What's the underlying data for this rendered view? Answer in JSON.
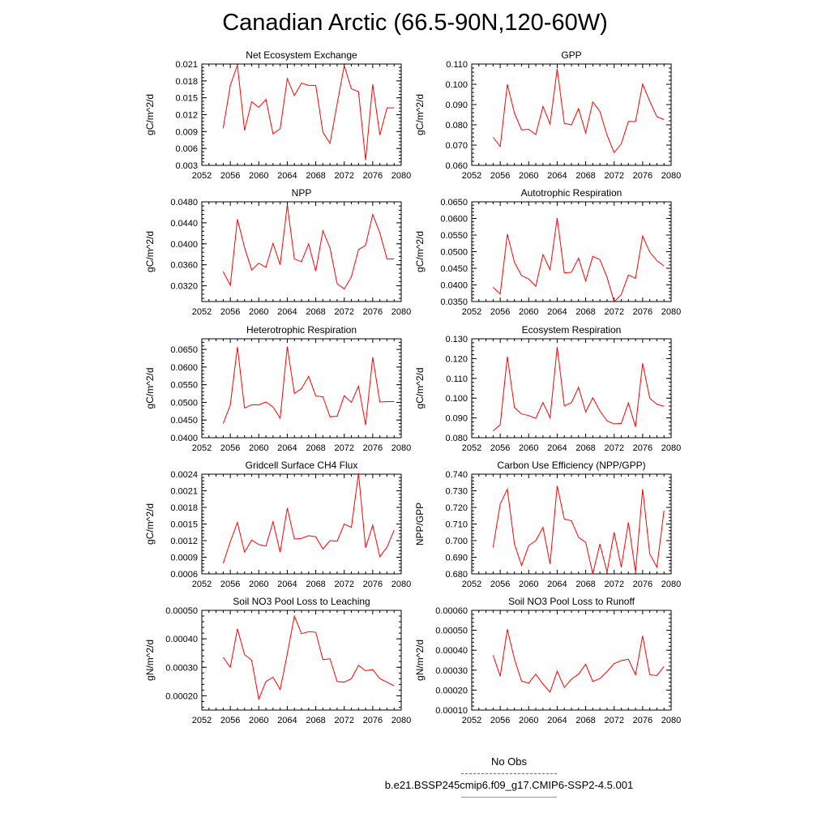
{
  "page_title": "Canadian Arctic (66.5-90N,120-60W)",
  "legend": [
    {
      "label": "No Obs",
      "color": "#6464ff",
      "style": "dashed"
    },
    {
      "label": "b.e21.BSSP245cmip6.f09_g17.CMIP6-SSP2-4.5.001",
      "color": "#ff0000",
      "style": "solid"
    }
  ],
  "chart_data": [
    {
      "type": "line",
      "title": "Net Ecosystem Exchange",
      "ylabel": "gC/m^2/d",
      "xlim": [
        2052,
        2080
      ],
      "xticks": [
        "2052",
        "2056",
        "2060",
        "2064",
        "2068",
        "2072",
        "2076",
        "2080"
      ],
      "ylim": [
        0.003,
        0.021
      ],
      "yticks": [
        "0.003",
        "0.006",
        "0.009",
        "0.012",
        "0.015",
        "0.018",
        "0.021"
      ],
      "series": [
        {
          "color": "#ff0000",
          "x": [
            2055,
            2056,
            2057,
            2058,
            2059,
            2060,
            2061,
            2062,
            2063,
            2064,
            2065,
            2066,
            2067,
            2068,
            2069,
            2070,
            2071,
            2072,
            2073,
            2074,
            2075,
            2076,
            2077,
            2078,
            2079
          ],
          "values": [
            0.0096,
            0.0172,
            0.0208,
            0.0092,
            0.0143,
            0.0133,
            0.0147,
            0.0086,
            0.0095,
            0.0184,
            0.0154,
            0.0176,
            0.0172,
            0.0172,
            0.0089,
            0.0069,
            0.0139,
            0.0207,
            0.0166,
            0.0161,
            0.0039,
            0.0174,
            0.0084,
            0.0132,
            0.0132
          ]
        }
      ]
    },
    {
      "type": "line",
      "title": "GPP",
      "ylabel": "gC/m^2/d",
      "xlim": [
        2052,
        2080
      ],
      "xticks": [
        "2052",
        "2056",
        "2060",
        "2064",
        "2068",
        "2072",
        "2076",
        "2080"
      ],
      "ylim": [
        0.06,
        0.11
      ],
      "yticks": [
        "0.060",
        "0.070",
        "0.080",
        "0.090",
        "0.100",
        "0.110"
      ],
      "series": [
        {
          "color": "#ff0000",
          "x": [
            2055,
            2056,
            2057,
            2058,
            2059,
            2060,
            2061,
            2062,
            2063,
            2064,
            2065,
            2066,
            2067,
            2068,
            2069,
            2070,
            2071,
            2072,
            2073,
            2074,
            2075,
            2076,
            2077,
            2078,
            2079
          ],
          "values": [
            0.0739,
            0.0693,
            0.1,
            0.0858,
            0.0775,
            0.0778,
            0.0752,
            0.0891,
            0.0804,
            0.1076,
            0.0807,
            0.08,
            0.088,
            0.076,
            0.0913,
            0.0866,
            0.0749,
            0.0663,
            0.0707,
            0.0817,
            0.0816,
            0.1001,
            0.0917,
            0.084,
            0.0826
          ]
        }
      ]
    },
    {
      "type": "line",
      "title": "NPP",
      "ylabel": "gC/m^2/d",
      "xlim": [
        2052,
        2080
      ],
      "xticks": [
        "2052",
        "2056",
        "2060",
        "2064",
        "2068",
        "2072",
        "2076",
        "2080"
      ],
      "ylim": [
        0.029,
        0.048
      ],
      "yticks": [
        "0.0320",
        "0.0360",
        "0.0400",
        "0.0440",
        "0.0480"
      ],
      "series": [
        {
          "color": "#ff0000",
          "x": [
            2055,
            2056,
            2057,
            2058,
            2059,
            2060,
            2061,
            2062,
            2063,
            2064,
            2065,
            2066,
            2067,
            2068,
            2069,
            2070,
            2071,
            2072,
            2073,
            2074,
            2075,
            2076,
            2077,
            2078,
            2079
          ],
          "values": [
            0.0347,
            0.0321,
            0.0447,
            0.0393,
            0.035,
            0.0363,
            0.0355,
            0.0401,
            0.036,
            0.0474,
            0.0371,
            0.0366,
            0.04,
            0.0348,
            0.0425,
            0.0392,
            0.0324,
            0.0314,
            0.0337,
            0.0389,
            0.0397,
            0.0456,
            0.0421,
            0.0371,
            0.0371
          ]
        }
      ]
    },
    {
      "type": "line",
      "title": "Autotrophic Respiration",
      "ylabel": "gC/m^2/d",
      "xlim": [
        2052,
        2080
      ],
      "xticks": [
        "2052",
        "2056",
        "2060",
        "2064",
        "2068",
        "2072",
        "2076",
        "2080"
      ],
      "ylim": [
        0.035,
        0.065
      ],
      "yticks": [
        "0.0350",
        "0.0400",
        "0.0450",
        "0.0500",
        "0.0550",
        "0.0600",
        "0.0650"
      ],
      "series": [
        {
          "color": "#ff0000",
          "x": [
            2055,
            2056,
            2057,
            2058,
            2059,
            2060,
            2061,
            2062,
            2063,
            2064,
            2065,
            2066,
            2067,
            2068,
            2069,
            2070,
            2071,
            2072,
            2073,
            2074,
            2075,
            2076,
            2077,
            2078,
            2079
          ],
          "values": [
            0.0393,
            0.0373,
            0.0553,
            0.0468,
            0.0428,
            0.0418,
            0.0396,
            0.0491,
            0.0446,
            0.0601,
            0.0436,
            0.0438,
            0.0481,
            0.0412,
            0.0486,
            0.0476,
            0.0423,
            0.0349,
            0.0371,
            0.043,
            0.042,
            0.0547,
            0.0499,
            0.0473,
            0.0457
          ]
        }
      ]
    },
    {
      "type": "line",
      "title": "Heterotrophic Respiration",
      "ylabel": "gC/m^2/d",
      "xlim": [
        2052,
        2080
      ],
      "xticks": [
        "2052",
        "2056",
        "2060",
        "2064",
        "2068",
        "2072",
        "2076",
        "2080"
      ],
      "ylim": [
        0.04,
        0.068
      ],
      "yticks": [
        "0.0400",
        "0.0450",
        "0.0500",
        "0.0550",
        "0.0600",
        "0.0650"
      ],
      "series": [
        {
          "color": "#ff0000",
          "x": [
            2055,
            2056,
            2057,
            2058,
            2059,
            2060,
            2061,
            2062,
            2063,
            2064,
            2065,
            2066,
            2067,
            2068,
            2069,
            2070,
            2071,
            2072,
            2073,
            2074,
            2075,
            2076,
            2077,
            2078,
            2079
          ],
          "values": [
            0.044,
            0.0493,
            0.0657,
            0.0484,
            0.0493,
            0.0493,
            0.0501,
            0.0487,
            0.0455,
            0.0658,
            0.0525,
            0.0539,
            0.0574,
            0.0518,
            0.0516,
            0.0459,
            0.0461,
            0.0519,
            0.05,
            0.0546,
            0.0436,
            0.0628,
            0.0501,
            0.0502,
            0.0502
          ]
        }
      ]
    },
    {
      "type": "line",
      "title": "Ecosystem Respiration",
      "ylabel": "gC/m^2/d",
      "xlim": [
        2052,
        2080
      ],
      "xticks": [
        "2052",
        "2056",
        "2060",
        "2064",
        "2068",
        "2072",
        "2076",
        "2080"
      ],
      "ylim": [
        0.08,
        0.13
      ],
      "yticks": [
        "0.080",
        "0.090",
        "0.100",
        "0.110",
        "0.120",
        "0.130"
      ],
      "series": [
        {
          "color": "#ff0000",
          "x": [
            2055,
            2056,
            2057,
            2058,
            2059,
            2060,
            2061,
            2062,
            2063,
            2064,
            2065,
            2066,
            2067,
            2068,
            2069,
            2070,
            2071,
            2072,
            2073,
            2074,
            2075,
            2076,
            2077,
            2078,
            2079
          ],
          "values": [
            0.0834,
            0.0866,
            0.121,
            0.0953,
            0.092,
            0.0912,
            0.0898,
            0.0978,
            0.0901,
            0.1259,
            0.0961,
            0.0977,
            0.1055,
            0.093,
            0.1002,
            0.0935,
            0.0885,
            0.087,
            0.0872,
            0.0976,
            0.0855,
            0.1176,
            0.1,
            0.0969,
            0.0959
          ]
        }
      ]
    },
    {
      "type": "line",
      "title": "Gridcell Surface CH4 Flux",
      "ylabel": "gC/m^2/d",
      "xlim": [
        2052,
        2080
      ],
      "xticks": [
        "2052",
        "2056",
        "2060",
        "2064",
        "2068",
        "2072",
        "2076",
        "2080"
      ],
      "ylim": [
        0.0006,
        0.0024
      ],
      "yticks": [
        "0.0006",
        "0.0009",
        "0.0012",
        "0.0015",
        "0.0018",
        "0.0021",
        "0.0024"
      ],
      "series": [
        {
          "color": "#ff0000",
          "x": [
            2055,
            2056,
            2057,
            2058,
            2059,
            2060,
            2061,
            2062,
            2063,
            2064,
            2065,
            2066,
            2067,
            2068,
            2069,
            2070,
            2071,
            2072,
            2073,
            2074,
            2075,
            2076,
            2077,
            2078,
            2079
          ],
          "values": [
            0.00079,
            0.00118,
            0.00153,
            0.00099,
            0.00121,
            0.00113,
            0.0011,
            0.00154,
            0.00099,
            0.00179,
            0.00123,
            0.00124,
            0.00129,
            0.00127,
            0.00105,
            0.0012,
            0.00119,
            0.0015,
            0.00144,
            0.00242,
            0.00107,
            0.00148,
            0.00091,
            0.00108,
            0.00139
          ]
        }
      ]
    },
    {
      "type": "line",
      "title": "Carbon Use Efficiency (NPP/GPP)",
      "ylabel": "NPP/GPP",
      "xlim": [
        2052,
        2080
      ],
      "xticks": [
        "2052",
        "2056",
        "2060",
        "2064",
        "2068",
        "2072",
        "2076",
        "2080"
      ],
      "ylim": [
        0.68,
        0.74
      ],
      "yticks": [
        "0.680",
        "0.690",
        "0.700",
        "0.710",
        "0.720",
        "0.730",
        "0.740"
      ],
      "series": [
        {
          "color": "#ff0000",
          "x": [
            2055,
            2056,
            2057,
            2058,
            2059,
            2060,
            2061,
            2062,
            2063,
            2064,
            2065,
            2066,
            2067,
            2068,
            2069,
            2070,
            2071,
            2072,
            2073,
            2074,
            2075,
            2076,
            2077,
            2078,
            2079
          ],
          "values": [
            0.696,
            0.722,
            0.731,
            0.698,
            0.685,
            0.697,
            0.7,
            0.708,
            0.686,
            0.733,
            0.713,
            0.712,
            0.702,
            0.699,
            0.68,
            0.698,
            0.681,
            0.705,
            0.684,
            0.711,
            0.681,
            0.731,
            0.692,
            0.684,
            0.718
          ]
        }
      ]
    },
    {
      "type": "line",
      "title": "Soil NO3 Pool Loss to Leaching",
      "ylabel": "gN/m^2/d",
      "xlim": [
        2052,
        2080
      ],
      "xticks": [
        "2052",
        "2056",
        "2060",
        "2064",
        "2068",
        "2072",
        "2076",
        "2080"
      ],
      "ylim": [
        0.00015,
        0.0005
      ],
      "yticks": [
        "0.00020",
        "0.00030",
        "0.00040",
        "0.00050"
      ],
      "series": [
        {
          "color": "#ff0000",
          "x": [
            2055,
            2056,
            2057,
            2058,
            2059,
            2060,
            2061,
            2062,
            2063,
            2064,
            2065,
            2066,
            2067,
            2068,
            2069,
            2070,
            2071,
            2072,
            2073,
            2074,
            2075,
            2076,
            2077,
            2078,
            2079
          ],
          "values": [
            0.000335,
            0.0003,
            0.000435,
            0.000345,
            0.000325,
            0.000188,
            0.00025,
            0.000265,
            0.000222,
            0.000347,
            0.00048,
            0.000418,
            0.000425,
            0.000423,
            0.000327,
            0.00033,
            0.00025,
            0.000248,
            0.00026,
            0.000307,
            0.000288,
            0.000292,
            0.00026,
            0.000248,
            0.000235
          ]
        }
      ]
    },
    {
      "type": "line",
      "title": "Soil NO3 Pool Loss to Runoff",
      "ylabel": "gN/m^2/d",
      "xlim": [
        2052,
        2080
      ],
      "xticks": [
        "2052",
        "2056",
        "2060",
        "2064",
        "2068",
        "2072",
        "2076",
        "2080"
      ],
      "ylim": [
        0.0001,
        0.0006
      ],
      "yticks": [
        "0.00010",
        "0.00020",
        "0.00030",
        "0.00040",
        "0.00050",
        "0.00060"
      ],
      "series": [
        {
          "color": "#ff0000",
          "x": [
            2055,
            2056,
            2057,
            2058,
            2059,
            2060,
            2061,
            2062,
            2063,
            2064,
            2065,
            2066,
            2067,
            2068,
            2069,
            2070,
            2071,
            2072,
            2073,
            2074,
            2075,
            2076,
            2077,
            2078,
            2079
          ],
          "values": [
            0.000375,
            0.00027,
            0.000505,
            0.000355,
            0.000245,
            0.000235,
            0.00028,
            0.00023,
            0.00019,
            0.000295,
            0.000213,
            0.000255,
            0.00028,
            0.00033,
            0.000243,
            0.000258,
            0.000293,
            0.000333,
            0.000348,
            0.000355,
            0.000277,
            0.000472,
            0.000277,
            0.000273,
            0.000318
          ]
        }
      ]
    }
  ]
}
